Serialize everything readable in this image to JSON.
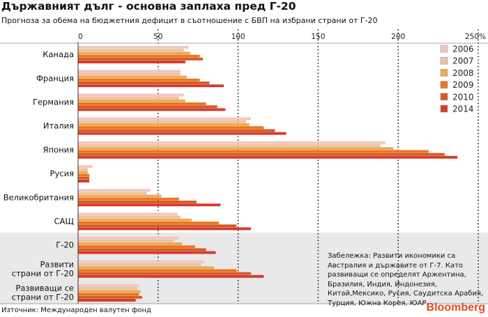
{
  "header": {
    "title": "Държавният дълг - основна заплаха пред Г-20",
    "subtitle": "Прогноза за обема на бюджетния дефицит в съотношение с БВП на избрани страни от Г-20"
  },
  "chart_data": {
    "type": "bar",
    "orientation": "horizontal",
    "categories": [
      "Канада",
      "Франция",
      "Германия",
      "Италия",
      "Япония",
      "Русия",
      "Великобритания",
      "САЩ",
      "Г-20",
      "Развити страни от Г-20",
      "Развиващи се страни от Г-20"
    ],
    "category_lines": [
      [
        "Канада"
      ],
      [
        "Франция"
      ],
      [
        "Германия"
      ],
      [
        "Италия"
      ],
      [
        "Япония"
      ],
      [
        "Русия"
      ],
      [
        "Великобритания"
      ],
      [
        "САЩ"
      ],
      [
        "Г-20"
      ],
      [
        "Развити",
        "страни от Г-20"
      ],
      [
        "Развиващи се",
        "страни от Г-20"
      ]
    ],
    "series": [
      {
        "name": "2006",
        "color": "#f0c8c0",
        "values": [
          69,
          64,
          66,
          108,
          192,
          9,
          45,
          62,
          63,
          79,
          38
        ]
      },
      {
        "name": "2007",
        "color": "#ecc4a0",
        "values": [
          66,
          64,
          63,
          105,
          189,
          6,
          43,
          64,
          60,
          77,
          37
        ]
      },
      {
        "name": "2008",
        "color": "#f0a858",
        "values": [
          70,
          68,
          67,
          107,
          197,
          6,
          52,
          71,
          65,
          85,
          39
        ]
      },
      {
        "name": "2009",
        "color": "#e87820",
        "values": [
          76,
          76,
          80,
          116,
          219,
          7,
          63,
          88,
          73,
          99,
          38
        ]
      },
      {
        "name": "2010",
        "color": "#d85a25",
        "values": [
          78,
          82,
          87,
          123,
          229,
          7,
          74,
          99,
          80,
          108,
          40
        ]
      },
      {
        "name": "2014",
        "color": "#d63a2a",
        "values": [
          67,
          91,
          92,
          130,
          237,
          7,
          89,
          108,
          86,
          116,
          36
        ]
      }
    ],
    "xlim": [
      0,
      250
    ],
    "xticks": [
      "0",
      "50",
      "100",
      "150",
      "200",
      "250%"
    ],
    "xtick_values": [
      0,
      50,
      100,
      150,
      200,
      250
    ],
    "grid": "vertical-dotted",
    "legend_position": "top-right",
    "shaded_categories": [
      "Г-20",
      "Развити страни от Г-20",
      "Развиващи се страни от Г-20"
    ],
    "shade_color": "#e9e9e9"
  },
  "note": "Забележка: Развити икономики са Австралия и държавите от Г-7. Като развиващи се определят Аржентина, Бразилия, Индия, Индонезия, Китай,Мексико, Русия, Саудитска Арабия, Турция, Южна Корея, ЮАР",
  "source": "Източник: Международен валутен фонд",
  "brand": "Bloomberg"
}
